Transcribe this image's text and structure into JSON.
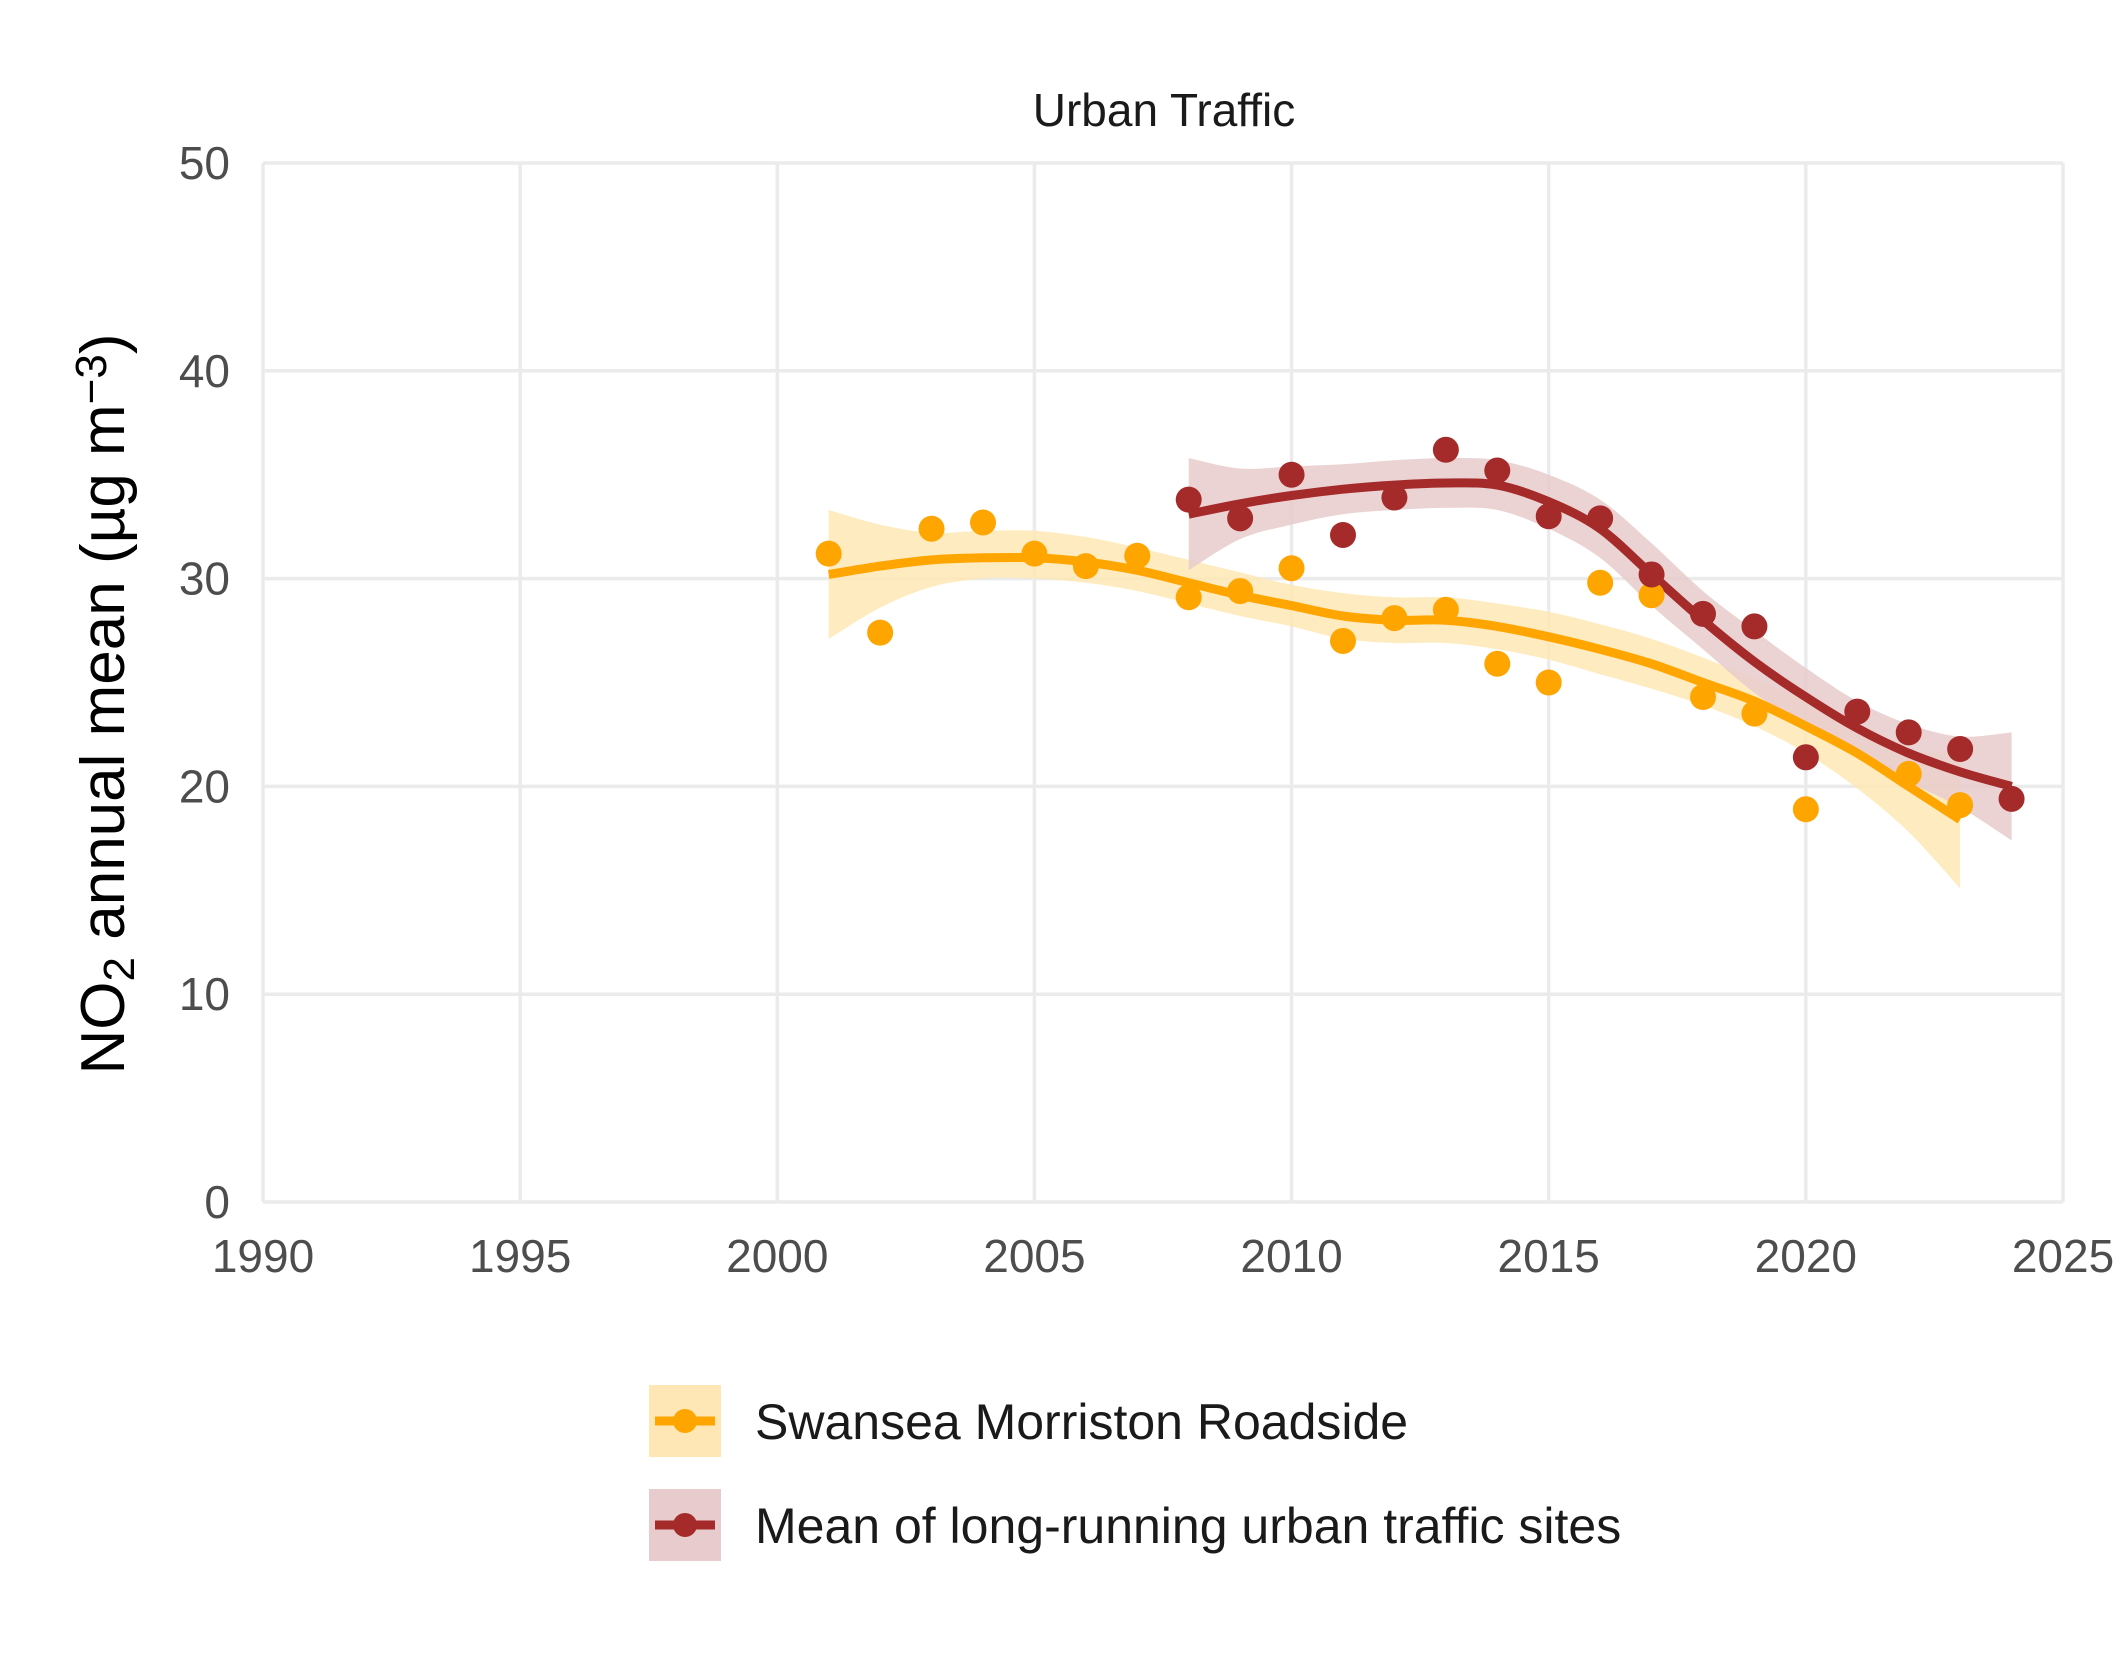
{
  "chart_data": {
    "type": "line",
    "title": "Urban Traffic",
    "ylabel": {
      "prefix": "NO",
      "subscript": "2",
      "middle": " annual mean (µg m",
      "superscript": "−3",
      "suffix": ")"
    },
    "xlabel": "",
    "xlim": [
      1990,
      2025
    ],
    "ylim": [
      0,
      50
    ],
    "xticks": [
      "1990",
      "1995",
      "2000",
      "2005",
      "2010",
      "2015",
      "2020",
      "2025"
    ],
    "yticks": [
      "0",
      "10",
      "20",
      "30",
      "40",
      "50"
    ],
    "legend_position": "bottom",
    "series": [
      {
        "name": "Swansea Morriston Roadside",
        "color": "#FFA500",
        "band_color": "#FFE7B5",
        "x": [
          2001,
          2002,
          2003,
          2004,
          2005,
          2006,
          2007,
          2008,
          2009,
          2010,
          2011,
          2012,
          2013,
          2014,
          2015,
          2016,
          2017,
          2018,
          2019,
          2020,
          2022,
          2023
        ],
        "values": [
          31.2,
          27.4,
          32.4,
          32.7,
          31.2,
          30.6,
          31.1,
          29.1,
          29.4,
          30.5,
          27.0,
          28.1,
          28.5,
          25.9,
          25.0,
          29.8,
          29.2,
          24.3,
          23.5,
          18.9,
          20.6,
          19.1
        ],
        "trend": {
          "x": [
            2001,
            2002,
            2003,
            2004,
            2005,
            2006,
            2007,
            2008,
            2009,
            2010,
            2011,
            2012,
            2013,
            2014,
            2015,
            2016,
            2017,
            2018,
            2019,
            2020,
            2021,
            2022,
            2023
          ],
          "y": [
            30.2,
            30.6,
            30.9,
            31.0,
            31.0,
            30.8,
            30.4,
            29.8,
            29.2,
            28.7,
            28.2,
            28.0,
            28.0,
            27.7,
            27.2,
            26.6,
            25.9,
            25.0,
            24.1,
            22.9,
            21.6,
            20.0,
            18.4
          ],
          "lower": [
            27.1,
            28.6,
            29.6,
            30.0,
            30.0,
            29.8,
            29.4,
            28.8,
            28.2,
            27.7,
            27.1,
            26.9,
            26.9,
            26.6,
            26.1,
            25.4,
            24.7,
            23.9,
            22.9,
            21.6,
            19.9,
            17.8,
            15.1
          ],
          "upper": [
            33.3,
            32.6,
            32.2,
            32.3,
            32.3,
            32.0,
            31.5,
            30.9,
            30.3,
            29.7,
            29.3,
            29.1,
            29.1,
            28.8,
            28.4,
            27.8,
            27.1,
            26.2,
            25.2,
            24.1,
            22.9,
            21.7,
            21.7
          ]
        }
      },
      {
        "name": "Mean of long-running urban traffic sites",
        "color": "#A52A2A",
        "band_color": "#E8CBCC",
        "x": [
          2008,
          2009,
          2010,
          2011,
          2012,
          2013,
          2014,
          2015,
          2016,
          2017,
          2018,
          2019,
          2020,
          2021,
          2022,
          2023,
          2024
        ],
        "values": [
          33.8,
          32.9,
          35.0,
          32.1,
          33.9,
          36.2,
          35.2,
          33.0,
          32.9,
          30.2,
          28.3,
          27.7,
          21.4,
          23.6,
          22.6,
          21.8,
          19.4
        ],
        "trend": {
          "x": [
            2008,
            2009,
            2010,
            2011,
            2012,
            2013,
            2014,
            2015,
            2016,
            2017,
            2018,
            2019,
            2020,
            2021,
            2022,
            2023,
            2024
          ],
          "y": [
            33.1,
            33.6,
            34.0,
            34.3,
            34.5,
            34.6,
            34.5,
            33.7,
            32.4,
            30.2,
            28.0,
            26.0,
            24.3,
            22.8,
            21.6,
            20.7,
            20.0
          ],
          "lower": [
            30.4,
            31.9,
            32.6,
            33.1,
            33.3,
            33.4,
            33.3,
            32.4,
            31.0,
            28.7,
            26.6,
            24.5,
            22.9,
            21.5,
            20.2,
            19.0,
            17.4
          ],
          "upper": [
            35.8,
            35.3,
            35.4,
            35.5,
            35.7,
            35.8,
            35.7,
            35.0,
            33.8,
            31.7,
            29.4,
            27.5,
            25.7,
            24.1,
            23.0,
            22.4,
            22.6
          ]
        }
      }
    ]
  }
}
